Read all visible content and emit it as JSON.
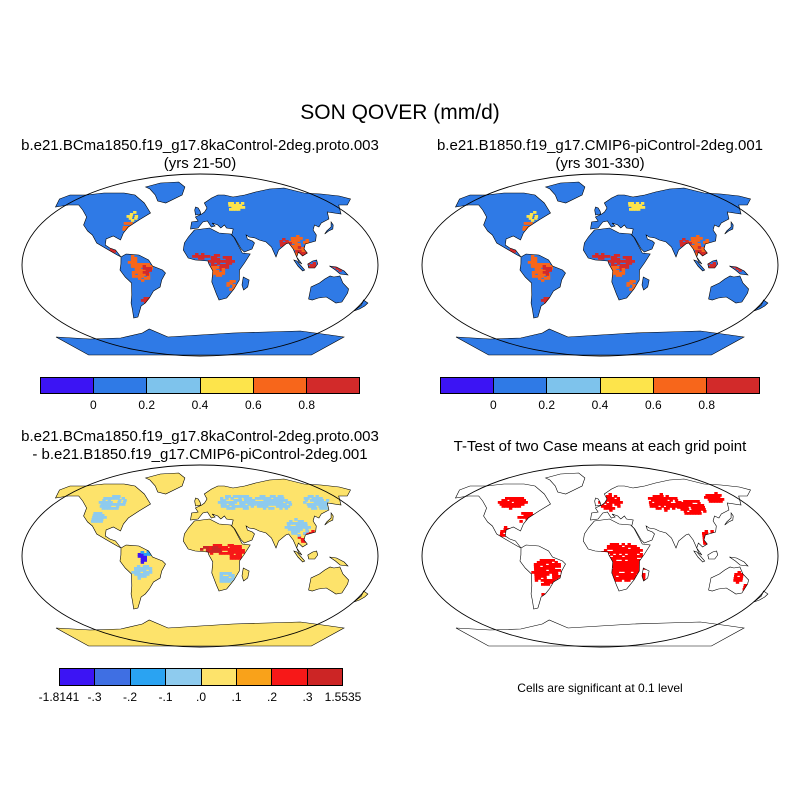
{
  "title": "SON QOVER (mm/d)",
  "panels": {
    "top_left": {
      "title": "b.e21.BCma1850.f19_g17.8kaControl-2deg.proto.003\n(yrs 21-50)"
    },
    "top_right": {
      "title": "b.e21.B1850.f19_g17.CMIP6-piControl-2deg.001\n(yrs 301-330)"
    },
    "bottom_left": {
      "title": "b.e21.BCma1850.f19_g17.8kaControl-2deg.proto.003\n- b.e21.B1850.f19_g17.CMIP6-piControl-2deg.001"
    },
    "bottom_right": {
      "title": "T-Test of two Case means at each grid point",
      "note": "Cells are significant at 0.1 level"
    }
  },
  "colorbars": {
    "case": {
      "colors": [
        "#3c14f4",
        "#2f7ae6",
        "#7ec3ec",
        "#fde44b",
        "#f7661b",
        "#d22a2a"
      ],
      "labels": [
        "0",
        "0.2",
        "0.4",
        "0.6",
        "0.8"
      ]
    },
    "diff": {
      "colors": [
        "#3c14f4",
        "#3f6fe3",
        "#2aa3f2",
        "#8ecbee",
        "#fde36b",
        "#f9a21a",
        "#f71818",
        "#cc2525"
      ],
      "labels": [
        "-1.8141",
        "-.3",
        "-.2",
        "-.1",
        ".0",
        ".1",
        ".2",
        ".3",
        "1.5535"
      ]
    },
    "ttest": {
      "color": "#ff0000"
    }
  }
}
